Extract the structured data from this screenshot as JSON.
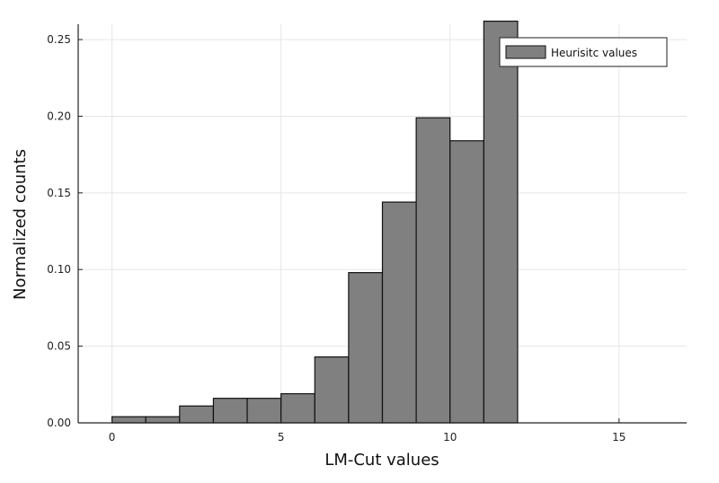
{
  "chart_data": {
    "type": "bar",
    "subtype": "histogram",
    "title": "",
    "xlabel": "LM-Cut values",
    "ylabel": "Normalized counts",
    "xlim": [
      -1,
      17
    ],
    "ylim": [
      0,
      0.26
    ],
    "xticks": [
      0,
      5,
      10,
      15
    ],
    "xtick_labels": [
      "0",
      "5",
      "10",
      "15"
    ],
    "yticks": [
      0,
      0.05,
      0.1,
      0.15,
      0.2,
      0.25
    ],
    "ytick_labels": [
      "0.00",
      "0.05",
      "0.10",
      "0.15",
      "0.20",
      "0.25"
    ],
    "grid": true,
    "legend": {
      "position": "top-right",
      "entries": [
        "Heurisitc values"
      ]
    },
    "bar_color": "#808080",
    "series": [
      {
        "name": "Heurisitc values",
        "bins": [
          {
            "x0": 0,
            "x1": 1,
            "value": 0.004
          },
          {
            "x0": 1,
            "x1": 2,
            "value": 0.004
          },
          {
            "x0": 2,
            "x1": 3,
            "value": 0.011
          },
          {
            "x0": 3,
            "x1": 4,
            "value": 0.016
          },
          {
            "x0": 4,
            "x1": 5,
            "value": 0.016
          },
          {
            "x0": 5,
            "x1": 6,
            "value": 0.019
          },
          {
            "x0": 6,
            "x1": 7,
            "value": 0.043
          },
          {
            "x0": 7,
            "x1": 8,
            "value": 0.098
          },
          {
            "x0": 8,
            "x1": 9,
            "value": 0.144
          },
          {
            "x0": 9,
            "x1": 10,
            "value": 0.199
          },
          {
            "x0": 10,
            "x1": 11,
            "value": 0.184
          },
          {
            "x0": 11,
            "x1": 12,
            "value": 0.262
          }
        ]
      }
    ]
  }
}
